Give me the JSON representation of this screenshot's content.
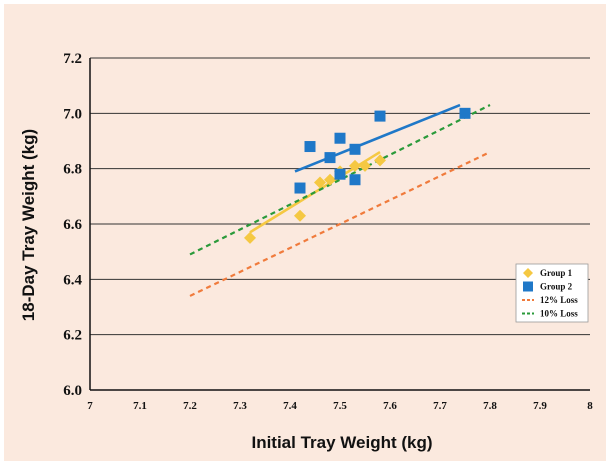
{
  "chart_data": {
    "type": "scatter",
    "title": "",
    "xlabel": "Initial Tray Weight (kg)",
    "ylabel": "18-Day Tray Weight (kg)",
    "xlim": [
      7,
      8
    ],
    "ylim": [
      6.0,
      7.2
    ],
    "x_ticks": [
      "7",
      "7.1",
      "7.2",
      "7.3",
      "7.4",
      "7.5",
      "7.6",
      "7.7",
      "7.8",
      "7.9",
      "8"
    ],
    "y_ticks": [
      "6.0",
      "6.2",
      "6.4",
      "6.6",
      "6.8",
      "7.0",
      "7.2"
    ],
    "grid": "horizontal",
    "legend_position": "right",
    "series": [
      {
        "name": "Group 1",
        "marker": "diamond",
        "color": "#f5c842",
        "points": [
          [
            7.32,
            6.55
          ],
          [
            7.42,
            6.63
          ],
          [
            7.46,
            6.75
          ],
          [
            7.48,
            6.76
          ],
          [
            7.5,
            6.79
          ],
          [
            7.53,
            6.81
          ],
          [
            7.55,
            6.81
          ],
          [
            7.58,
            6.83
          ]
        ],
        "fit_line": [
          [
            7.32,
            6.57
          ],
          [
            7.58,
            6.86
          ]
        ]
      },
      {
        "name": "Group 2",
        "marker": "square",
        "color": "#1f78c8",
        "points": [
          [
            7.42,
            6.73
          ],
          [
            7.44,
            6.88
          ],
          [
            7.48,
            6.84
          ],
          [
            7.5,
            6.78
          ],
          [
            7.5,
            6.91
          ],
          [
            7.53,
            6.87
          ],
          [
            7.53,
            6.76
          ],
          [
            7.58,
            6.99
          ],
          [
            7.75,
            7.0
          ]
        ],
        "fit_line": [
          [
            7.41,
            6.79
          ],
          [
            7.74,
            7.03
          ]
        ]
      },
      {
        "name": "12% Loss",
        "style": "dashed",
        "color": "#f07b3c",
        "line": [
          [
            7.2,
            6.34
          ],
          [
            7.8,
            6.86
          ]
        ]
      },
      {
        "name": "10% Loss",
        "style": "dashed",
        "color": "#2a9a3a",
        "line": [
          [
            7.2,
            6.49
          ],
          [
            7.8,
            7.03
          ]
        ]
      }
    ]
  }
}
